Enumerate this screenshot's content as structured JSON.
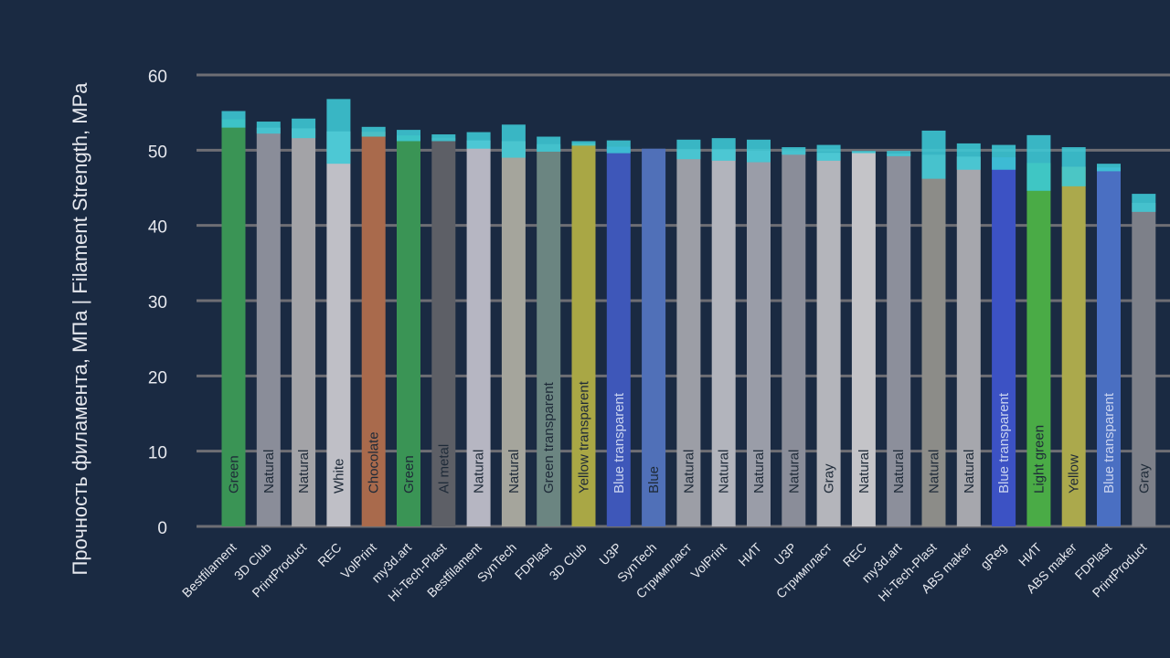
{
  "chart_data": {
    "type": "bar",
    "title": "",
    "xlabel": "",
    "ylabel": "Прочность филамента, МПа | Filament Strength, MPa",
    "ylim": [
      0,
      60
    ],
    "yticks": [
      0,
      10,
      20,
      30,
      40,
      50,
      60
    ],
    "grid": true,
    "colors": {
      "background": "#1a2a42",
      "grid": "#6e6e74",
      "tick_text": "#e6e8ee",
      "error_band": "#3ec9d6"
    },
    "bars": [
      {
        "brand": "Bestfilament",
        "color_name": "Green",
        "low": 53.0,
        "high": 55.2,
        "fill": "#3a9455",
        "label_color": "#1e2a38"
      },
      {
        "brand": "3D Club",
        "color_name": "Natural",
        "low": 52.2,
        "high": 53.8,
        "fill": "#8a8d99",
        "label_color": "#1e2a38"
      },
      {
        "brand": "PrintProduct",
        "color_name": "Natural",
        "low": 51.6,
        "high": 54.2,
        "fill": "#a3a3a7",
        "label_color": "#1e2a38"
      },
      {
        "brand": "REC",
        "color_name": "White",
        "low": 48.2,
        "high": 56.8,
        "fill": "#bfbfc6",
        "label_color": "#1e2a38"
      },
      {
        "brand": "VolPrint",
        "color_name": "Chocolate",
        "low": 51.8,
        "high": 53.1,
        "fill": "#a96a4c",
        "label_color": "#1e2a38"
      },
      {
        "brand": "my3d.art",
        "color_name": "Green",
        "low": 51.2,
        "high": 52.7,
        "fill": "#3a9455",
        "label_color": "#1e2a38"
      },
      {
        "brand": "Hi-Tech-Plast",
        "color_name": "Al metal",
        "low": 51.2,
        "high": 52.1,
        "fill": "#5d5f66",
        "label_color": "#1e2a38"
      },
      {
        "brand": "Bestfilament",
        "color_name": "Natural",
        "low": 50.2,
        "high": 52.4,
        "fill": "#b6b6c2",
        "label_color": "#1e2a38"
      },
      {
        "brand": "SynTech",
        "color_name": "Natural",
        "low": 49.0,
        "high": 53.4,
        "fill": "#a5a59c",
        "label_color": "#1e2a38"
      },
      {
        "brand": "FDPlast",
        "color_name": "Green transparent",
        "low": 49.8,
        "high": 51.8,
        "fill": "#6b8581",
        "label_color": "#1e2a38"
      },
      {
        "brand": "3D Club",
        "color_name": "Yellow transparent",
        "low": 50.6,
        "high": 51.2,
        "fill": "#a9a745",
        "label_color": "#1e2a38"
      },
      {
        "brand": "U3P",
        "color_name": "Blue transparent",
        "low": 49.6,
        "high": 51.3,
        "fill": "#3e57b9",
        "label_color": "#c9d3ef"
      },
      {
        "brand": "SynTech",
        "color_name": "Blue",
        "low": 50.2,
        "high": 50.2,
        "fill": "#5070b8",
        "label_color": "#1e2a38"
      },
      {
        "brand": "Стримпласт",
        "color_name": "Natural",
        "low": 48.8,
        "high": 51.4,
        "fill": "#9c9ea6",
        "label_color": "#1e2a38"
      },
      {
        "brand": "VolPrint",
        "color_name": "Natural",
        "low": 48.6,
        "high": 51.6,
        "fill": "#b2b4bc",
        "label_color": "#1e2a38"
      },
      {
        "brand": "НИТ",
        "color_name": "Natural",
        "low": 48.4,
        "high": 51.4,
        "fill": "#9a9da8",
        "label_color": "#1e2a38"
      },
      {
        "brand": "U3P",
        "color_name": "Natural",
        "low": 49.4,
        "high": 50.4,
        "fill": "#8a8d99",
        "label_color": "#1e2a38"
      },
      {
        "brand": "Стримпласт",
        "color_name": "Gray",
        "low": 48.6,
        "high": 50.7,
        "fill": "#b4b5bb",
        "label_color": "#1e2a38"
      },
      {
        "brand": "REC",
        "color_name": "Natural",
        "low": 49.6,
        "high": 49.9,
        "fill": "#c4c4c8",
        "label_color": "#1e2a38"
      },
      {
        "brand": "my3d.art",
        "color_name": "Natural",
        "low": 49.2,
        "high": 49.9,
        "fill": "#8c8f9b",
        "label_color": "#1e2a38"
      },
      {
        "brand": "Hi-Tech-Plast",
        "color_name": "Natural",
        "low": 46.2,
        "high": 52.6,
        "fill": "#8c8c88",
        "label_color": "#1e2a38"
      },
      {
        "brand": "ABS maker",
        "color_name": "Natural",
        "low": 47.4,
        "high": 50.9,
        "fill": "#a6a7ad",
        "label_color": "#1e2a38"
      },
      {
        "brand": "gReg",
        "color_name": "Blue transparent",
        "low": 47.4,
        "high": 50.7,
        "fill": "#3c52c4",
        "label_color": "#c9d3ef"
      },
      {
        "brand": "НИТ",
        "color_name": "Light green",
        "low": 44.6,
        "high": 52.0,
        "fill": "#4aab46",
        "label_color": "#1e2a38"
      },
      {
        "brand": "ABS maker",
        "color_name": "Yellow",
        "low": 45.2,
        "high": 50.4,
        "fill": "#aba94c",
        "label_color": "#1e2a38"
      },
      {
        "brand": "FDPlast",
        "color_name": "Blue transparent",
        "low": 47.2,
        "high": 48.2,
        "fill": "#4a6fc2",
        "label_color": "#c9d3ef"
      },
      {
        "brand": "PrintProduct",
        "color_name": "Gray",
        "low": 41.8,
        "high": 44.2,
        "fill": "#7d8089",
        "label_color": "#1e2a38"
      }
    ]
  }
}
